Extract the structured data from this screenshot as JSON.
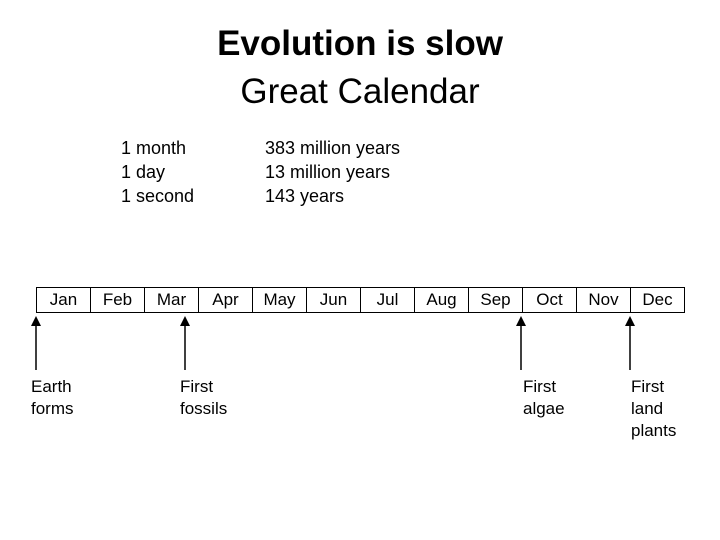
{
  "title": {
    "line1": "Evolution is slow",
    "line2": "Great Calendar"
  },
  "scale": {
    "units": [
      "1 month",
      "1 day",
      "1 second"
    ],
    "equivalents": [
      "383 million years",
      "13 million years",
      "143 years"
    ]
  },
  "months": [
    "Jan",
    "Feb",
    "Mar",
    "Apr",
    "May",
    "Jun",
    "Jul",
    "Aug",
    "Sep",
    "Oct",
    "Nov",
    "Dec"
  ],
  "events": [
    {
      "label": "Earth\nforms"
    },
    {
      "label": "First\nfossils"
    },
    {
      "label": "First\nalgae"
    },
    {
      "label": "First\nland\nplants"
    }
  ]
}
